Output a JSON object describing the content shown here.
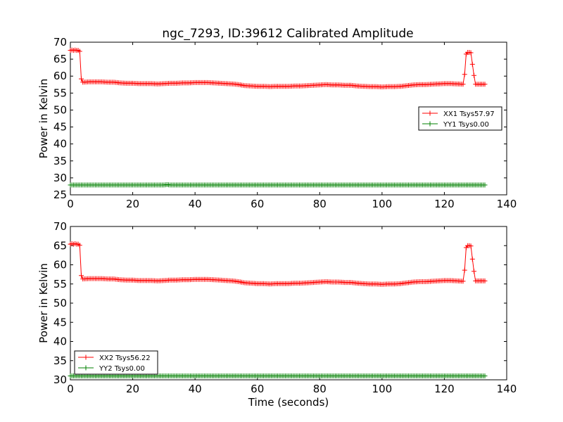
{
  "title": "ngc_7293, ID:39612 Calibrated Amplitude",
  "chart_data": [
    {
      "type": "line",
      "title": "ngc_7293, ID:39612 Calibrated Amplitude",
      "xlabel": "",
      "ylabel": "Power in Kelvin",
      "xlim": [
        0,
        140
      ],
      "ylim": [
        25,
        70
      ],
      "xticks": [
        "0",
        "20",
        "40",
        "60",
        "80",
        "100",
        "120",
        "140"
      ],
      "yticks": [
        "25",
        "30",
        "35",
        "40",
        "45",
        "50",
        "55",
        "60",
        "65",
        "70"
      ],
      "grid": false,
      "legend_position": "center-right",
      "marker": "+",
      "series": [
        {
          "name": "XX1 Tsys57.97",
          "color": "#ff0000",
          "points": [
            [
              0,
              67.6
            ],
            [
              0.5,
              67.7
            ],
            [
              1,
              67.6
            ],
            [
              1.5,
              67.7
            ],
            [
              2,
              67.6
            ],
            [
              2.5,
              67.6
            ],
            [
              3,
              67.3
            ],
            [
              3.5,
              59.2
            ],
            [
              4,
              58.2
            ],
            [
              6,
              58.3
            ],
            [
              8,
              58.3
            ],
            [
              10,
              58.3
            ],
            [
              12,
              58.2
            ],
            [
              14,
              58.2
            ],
            [
              16,
              58.0
            ],
            [
              18,
              57.9
            ],
            [
              20,
              57.9
            ],
            [
              22,
              57.8
            ],
            [
              24,
              57.8
            ],
            [
              26,
              57.8
            ],
            [
              28,
              57.7
            ],
            [
              30,
              57.8
            ],
            [
              32,
              57.9
            ],
            [
              34,
              57.9
            ],
            [
              36,
              58.0
            ],
            [
              38,
              58.0
            ],
            [
              40,
              58.1
            ],
            [
              42,
              58.1
            ],
            [
              44,
              58.1
            ],
            [
              46,
              58.0
            ],
            [
              48,
              57.9
            ],
            [
              50,
              57.8
            ],
            [
              52,
              57.7
            ],
            [
              54,
              57.5
            ],
            [
              56,
              57.2
            ],
            [
              58,
              57.1
            ],
            [
              60,
              57.0
            ],
            [
              62,
              57.0
            ],
            [
              64,
              56.9
            ],
            [
              66,
              57.0
            ],
            [
              68,
              57.0
            ],
            [
              70,
              57.0
            ],
            [
              72,
              57.1
            ],
            [
              74,
              57.1
            ],
            [
              76,
              57.2
            ],
            [
              78,
              57.3
            ],
            [
              80,
              57.4
            ],
            [
              82,
              57.5
            ],
            [
              84,
              57.4
            ],
            [
              86,
              57.4
            ],
            [
              88,
              57.3
            ],
            [
              90,
              57.3
            ],
            [
              92,
              57.1
            ],
            [
              94,
              57.0
            ],
            [
              96,
              56.9
            ],
            [
              98,
              56.9
            ],
            [
              100,
              56.8
            ],
            [
              102,
              56.9
            ],
            [
              104,
              56.9
            ],
            [
              106,
              57.0
            ],
            [
              108,
              57.2
            ],
            [
              110,
              57.4
            ],
            [
              112,
              57.5
            ],
            [
              114,
              57.5
            ],
            [
              116,
              57.6
            ],
            [
              118,
              57.7
            ],
            [
              120,
              57.8
            ],
            [
              122,
              57.8
            ],
            [
              124,
              57.7
            ],
            [
              126,
              57.6
            ],
            [
              126.5,
              60.5
            ],
            [
              127,
              66.5
            ],
            [
              127.5,
              67.0
            ],
            [
              128,
              67.0
            ],
            [
              128.5,
              66.9
            ],
            [
              129,
              63.5
            ],
            [
              129.5,
              60.2
            ],
            [
              130,
              57.6
            ],
            [
              131,
              57.6
            ],
            [
              132,
              57.6
            ],
            [
              133,
              57.6
            ]
          ]
        },
        {
          "name": "YY1 Tsys0.00",
          "color": "#008000",
          "points": [
            [
              0,
              27.9
            ],
            [
              10,
              27.9
            ],
            [
              20,
              27.9
            ],
            [
              30,
              27.9
            ],
            [
              31,
              28.0
            ],
            [
              32,
              27.9
            ],
            [
              40,
              27.9
            ],
            [
              50,
              27.9
            ],
            [
              60,
              27.9
            ],
            [
              70,
              27.9
            ],
            [
              80,
              27.9
            ],
            [
              90,
              27.9
            ],
            [
              100,
              27.9
            ],
            [
              110,
              27.9
            ],
            [
              120,
              27.9
            ],
            [
              130,
              27.9
            ],
            [
              133,
              27.9
            ]
          ]
        }
      ]
    },
    {
      "type": "line",
      "title": "",
      "xlabel": "Time (seconds)",
      "ylabel": "Power in Kelvin",
      "xlim": [
        0,
        140
      ],
      "ylim": [
        30,
        70
      ],
      "xticks": [
        "0",
        "20",
        "40",
        "60",
        "80",
        "100",
        "120",
        "140"
      ],
      "yticks": [
        "30",
        "35",
        "40",
        "45",
        "50",
        "55",
        "60",
        "65",
        "70"
      ],
      "grid": false,
      "legend_position": "lower-left",
      "marker": "+",
      "series": [
        {
          "name": "XX2 Tsys56.22",
          "color": "#ff0000",
          "points": [
            [
              0,
              65.4
            ],
            [
              0.5,
              65.5
            ],
            [
              1,
              65.4
            ],
            [
              1.5,
              65.5
            ],
            [
              2,
              65.4
            ],
            [
              2.5,
              65.4
            ],
            [
              3,
              65.1
            ],
            [
              3.5,
              57.2
            ],
            [
              4,
              56.3
            ],
            [
              6,
              56.4
            ],
            [
              8,
              56.4
            ],
            [
              10,
              56.4
            ],
            [
              12,
              56.3
            ],
            [
              14,
              56.3
            ],
            [
              16,
              56.1
            ],
            [
              18,
              56.0
            ],
            [
              20,
              56.0
            ],
            [
              22,
              55.9
            ],
            [
              24,
              55.9
            ],
            [
              26,
              55.9
            ],
            [
              28,
              55.8
            ],
            [
              30,
              55.9
            ],
            [
              32,
              56.0
            ],
            [
              34,
              56.0
            ],
            [
              36,
              56.1
            ],
            [
              38,
              56.1
            ],
            [
              40,
              56.2
            ],
            [
              42,
              56.2
            ],
            [
              44,
              56.2
            ],
            [
              46,
              56.1
            ],
            [
              48,
              56.0
            ],
            [
              50,
              55.9
            ],
            [
              52,
              55.8
            ],
            [
              54,
              55.6
            ],
            [
              56,
              55.3
            ],
            [
              58,
              55.2
            ],
            [
              60,
              55.1
            ],
            [
              62,
              55.1
            ],
            [
              64,
              55.0
            ],
            [
              66,
              55.1
            ],
            [
              68,
              55.1
            ],
            [
              70,
              55.1
            ],
            [
              72,
              55.2
            ],
            [
              74,
              55.2
            ],
            [
              76,
              55.3
            ],
            [
              78,
              55.4
            ],
            [
              80,
              55.5
            ],
            [
              82,
              55.6
            ],
            [
              84,
              55.5
            ],
            [
              86,
              55.5
            ],
            [
              88,
              55.4
            ],
            [
              90,
              55.4
            ],
            [
              92,
              55.2
            ],
            [
              94,
              55.1
            ],
            [
              96,
              55.0
            ],
            [
              98,
              55.0
            ],
            [
              100,
              54.9
            ],
            [
              102,
              55.0
            ],
            [
              104,
              55.0
            ],
            [
              106,
              55.1
            ],
            [
              108,
              55.3
            ],
            [
              110,
              55.5
            ],
            [
              112,
              55.6
            ],
            [
              114,
              55.6
            ],
            [
              116,
              55.7
            ],
            [
              118,
              55.8
            ],
            [
              120,
              55.9
            ],
            [
              122,
              55.9
            ],
            [
              124,
              55.8
            ],
            [
              126,
              55.7
            ],
            [
              126.5,
              58.6
            ],
            [
              127,
              64.5
            ],
            [
              127.5,
              65.0
            ],
            [
              128,
              65.0
            ],
            [
              128.5,
              64.9
            ],
            [
              129,
              61.5
            ],
            [
              129.5,
              58.3
            ],
            [
              130,
              55.8
            ],
            [
              131,
              55.8
            ],
            [
              132,
              55.8
            ],
            [
              133,
              55.8
            ]
          ]
        },
        {
          "name": "YY2 Tsys0.00",
          "color": "#008000",
          "points": [
            [
              0,
              31.0
            ],
            [
              10,
              31.0
            ],
            [
              20,
              31.0
            ],
            [
              30,
              31.0
            ],
            [
              40,
              31.0
            ],
            [
              50,
              31.0
            ],
            [
              60,
              31.0
            ],
            [
              70,
              31.0
            ],
            [
              80,
              31.0
            ],
            [
              90,
              31.0
            ],
            [
              100,
              31.0
            ],
            [
              110,
              31.0
            ],
            [
              120,
              31.0
            ],
            [
              130,
              31.0
            ],
            [
              133,
              31.0
            ]
          ]
        }
      ]
    }
  ]
}
